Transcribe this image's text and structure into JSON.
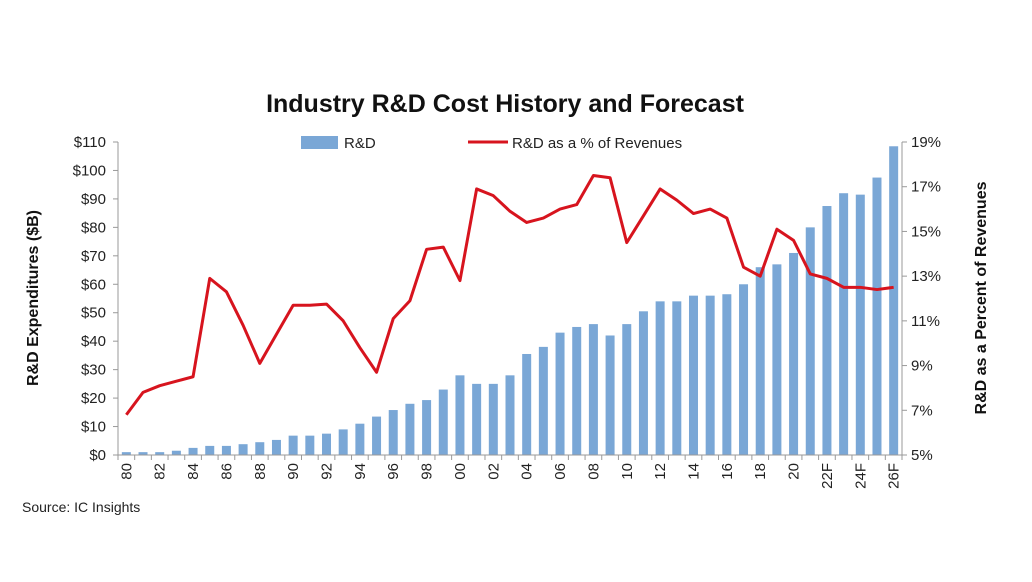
{
  "chart_data": {
    "type": "bar+line",
    "title": "Industry R&D Cost History and Forecast",
    "ylabel": "R&D Expenditures ($B)",
    "y2label": "R&D as a Percent of Revenues",
    "source": "Source: IC Insights",
    "ylim": [
      0,
      110
    ],
    "y2lim": [
      5,
      19
    ],
    "yticks": [
      "$0",
      "$10",
      "$20",
      "$30",
      "$40",
      "$50",
      "$60",
      "$70",
      "$80",
      "$90",
      "$100",
      "$110"
    ],
    "y2ticks": [
      "5%",
      "7%",
      "9%",
      "11%",
      "13%",
      "15%",
      "17%",
      "19%"
    ],
    "categories": [
      "80",
      "81",
      "82",
      "83",
      "84",
      "85",
      "86",
      "87",
      "88",
      "89",
      "90",
      "91",
      "92",
      "93",
      "94",
      "95",
      "96",
      "97",
      "98",
      "99",
      "00",
      "01",
      "02",
      "03",
      "04",
      "05",
      "06",
      "07",
      "08",
      "09",
      "10",
      "11",
      "12",
      "13",
      "14",
      "15",
      "16",
      "17",
      "18",
      "19",
      "20",
      "21",
      "22F",
      "23F",
      "24F",
      "25F",
      "26F"
    ],
    "xticklabels": [
      "80",
      "82",
      "84",
      "86",
      "88",
      "90",
      "92",
      "94",
      "96",
      "98",
      "00",
      "02",
      "04",
      "06",
      "08",
      "10",
      "12",
      "14",
      "16",
      "18",
      "20",
      "22F",
      "24F",
      "26F"
    ],
    "legend": [
      "R&D",
      "R&D as a % of Revenues"
    ],
    "legend_position": "top",
    "series": [
      {
        "name": "R&D",
        "type": "bar",
        "axis": "left",
        "color": "#7aa7d6",
        "values": [
          1,
          1,
          1,
          1.5,
          2.5,
          3.2,
          3.2,
          3.8,
          4.5,
          5.3,
          6.8,
          6.8,
          7.5,
          9,
          11,
          13.5,
          15.8,
          18,
          19.3,
          23,
          28,
          25,
          25,
          28,
          35.5,
          38,
          43,
          45,
          46,
          42,
          46,
          50.5,
          54,
          54,
          56,
          56,
          56.5,
          60,
          66,
          67,
          71,
          80,
          87.5,
          92,
          91.5,
          97.5,
          108.5
        ]
      },
      {
        "name": "R&D as a % of Revenues",
        "type": "line",
        "axis": "right",
        "color": "#d7141e",
        "values": [
          6.8,
          7.8,
          8.1,
          8.3,
          8.5,
          12.9,
          12.3,
          10.8,
          9.1,
          10.4,
          11.7,
          11.7,
          11.75,
          11,
          9.8,
          8.7,
          11.1,
          11.9,
          14.2,
          14.3,
          12.8,
          16.9,
          16.6,
          15.9,
          15.4,
          15.6,
          16,
          16.2,
          17.5,
          17.4,
          14.5,
          15.7,
          16.9,
          16.4,
          15.8,
          16,
          15.6,
          13.4,
          13,
          15.1,
          14.6,
          13.1,
          12.9,
          12.5,
          12.5,
          12.4,
          12.5
        ]
      }
    ]
  }
}
